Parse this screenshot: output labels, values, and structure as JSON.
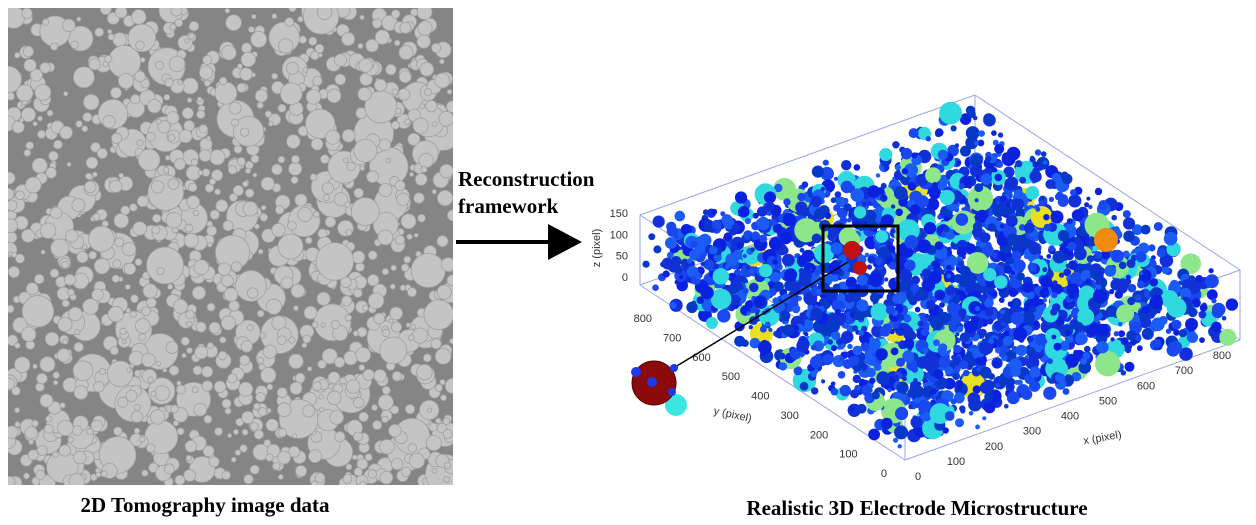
{
  "left_panel": {
    "caption": "2D Tomography image data"
  },
  "arrow": {
    "label": [
      "Reconstruction",
      "framework"
    ]
  },
  "right_panel": {
    "caption": "Realistic 3D Electrode Microstructure",
    "z_axis": {
      "label": "z (pixel)",
      "ticks": [
        150,
        100,
        50,
        0
      ]
    },
    "y_axis": {
      "label": "y (pixel)",
      "ticks": [
        800,
        700,
        600,
        500,
        400,
        300,
        200,
        100,
        0
      ]
    },
    "x_axis": {
      "label": "x (pixel)",
      "ticks": [
        0,
        100,
        200,
        300,
        400,
        500,
        600,
        700,
        800
      ]
    }
  }
}
